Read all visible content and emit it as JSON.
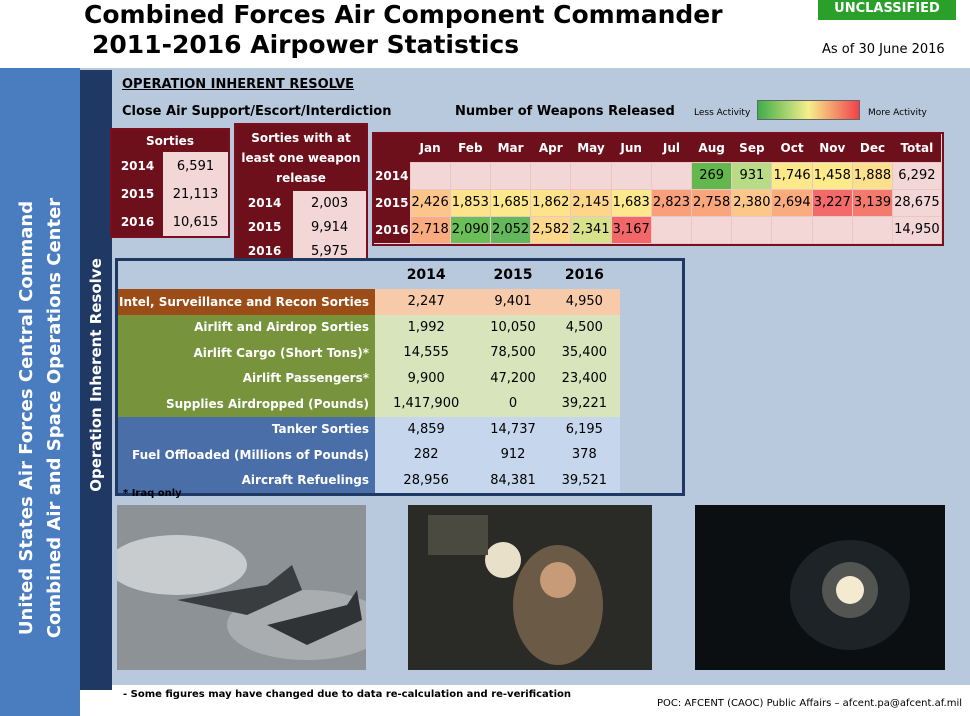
{
  "header": {
    "title_line1": "Combined Forces Air Component Commander",
    "title_line2": "2011-2016 Airpower Statistics",
    "classification": "UNCLASSIFIED",
    "as_of": "As of 30 June 2016"
  },
  "side": {
    "line1": "United States Air Forces Central Command",
    "line2": "Combined Air and Space Operations Center",
    "operation": "Operation Inherent Resolve"
  },
  "section": {
    "heading": "OPERATION INHERENT RESOLVE",
    "subheading": "Close Air Support/Escort/Interdiction"
  },
  "sorties": {
    "title": "Sorties",
    "rows": [
      [
        "2014",
        "6,591"
      ],
      [
        "2015",
        "21,113"
      ],
      [
        "2016",
        "10,615"
      ]
    ]
  },
  "weapon_sorties": {
    "title": "Sorties with at least one weapon release",
    "rows": [
      [
        "2014",
        "2,003"
      ],
      [
        "2015",
        "9,914"
      ],
      [
        "2016",
        "5,975"
      ]
    ]
  },
  "weapons": {
    "title": "Number of Weapons Released",
    "legend_low": "Less Activity",
    "legend_high": "More Activity",
    "columns": [
      "Jan",
      "Feb",
      "Mar",
      "Apr",
      "May",
      "Jun",
      "Jul",
      "Aug",
      "Sep",
      "Oct",
      "Nov",
      "Dec",
      "Total"
    ],
    "rows": [
      {
        "year": "2014",
        "values": [
          null,
          null,
          null,
          null,
          null,
          null,
          null,
          "269",
          "931",
          "1,746",
          "1,458",
          "1,888",
          "6,292"
        ],
        "colors": [
          "#f3d6d6",
          "#f3d6d6",
          "#f3d6d6",
          "#f3d6d6",
          "#f3d6d6",
          "#f3d6d6",
          "#f3d6d6",
          "#63b84d",
          "#b8dc86",
          "#fde88a",
          "#fdea8b",
          "#fde08b",
          "#f3d6d6"
        ]
      },
      {
        "year": "2015",
        "values": [
          "2,426",
          "1,853",
          "1,685",
          "1,862",
          "2,145",
          "1,683",
          "2,823",
          "2,758",
          "2,380",
          "2,694",
          "3,227",
          "3,139",
          "28,675"
        ],
        "colors": [
          "#fcc58a",
          "#fde38b",
          "#fde88b",
          "#fde48a",
          "#fdd68a",
          "#fde88b",
          "#f9a07a",
          "#faa57c",
          "#fcc88a",
          "#fbac7e",
          "#f46a6a",
          "#f57a6e",
          "#f3d6d6"
        ]
      },
      {
        "year": "2016",
        "values": [
          "2,718",
          "2,090",
          "2,052",
          "2,582",
          "2,341",
          "3,167",
          null,
          null,
          null,
          null,
          null,
          null,
          "14,950"
        ],
        "colors": [
          "#fbab7e",
          "#6bbf58",
          "#62b85a",
          "#fcd88a",
          "#d8e28a",
          "#f36768",
          "#f3d6d6",
          "#f3d6d6",
          "#f3d6d6",
          "#f3d6d6",
          "#f3d6d6",
          "#f3d6d6",
          "#f3d6d6"
        ]
      }
    ]
  },
  "stats": {
    "columns": [
      "2014",
      "2015",
      "2016"
    ],
    "rows": [
      {
        "label": "Intel, Surveillance and Recon Sorties",
        "values": [
          "2,247",
          "9,401",
          "4,950"
        ],
        "label_color": "#9c4d17",
        "value_color": "#f7cba9"
      },
      {
        "label": "Airlift and Airdrop Sorties",
        "values": [
          "1,992",
          "10,050",
          "4,500"
        ],
        "label_color": "#77933c",
        "value_color": "#d8e4bc"
      },
      {
        "label": "Airlift Cargo (Short Tons)*",
        "values": [
          "14,555",
          "78,500",
          "35,400"
        ],
        "label_color": "#77933c",
        "value_color": "#d8e4bc"
      },
      {
        "label": "Airlift Passengers*",
        "values": [
          "9,900",
          "47,200",
          "23,400"
        ],
        "label_color": "#77933c",
        "value_color": "#d8e4bc"
      },
      {
        "label": "Supplies Airdropped (Pounds)",
        "values": [
          "1,417,900",
          "0",
          "39,221"
        ],
        "label_color": "#77933c",
        "value_color": "#d8e4bc"
      },
      {
        "label": "Tanker Sorties",
        "values": [
          "4,859",
          "14,737",
          "6,195"
        ],
        "label_color": "#4a6ea8",
        "value_color": "#c6d6ec"
      },
      {
        "label": "Fuel Offloaded (Millions of Pounds)",
        "values": [
          "282",
          "912",
          "378"
        ],
        "label_color": "#4a6ea8",
        "value_color": "#c6d6ec"
      },
      {
        "label": "Aircraft Refuelings",
        "values": [
          "28,956",
          "84,381",
          "39,521"
        ],
        "label_color": "#4a6ea8",
        "value_color": "#c6d6ec"
      }
    ],
    "note": "* Iraq only"
  },
  "footer": {
    "note": "- Some figures may have changed due to data re-calculation and re-verification",
    "poc": "POC:  AFCENT (CAOC) Public Affairs – afcent.pa@afcent.af.mil"
  }
}
